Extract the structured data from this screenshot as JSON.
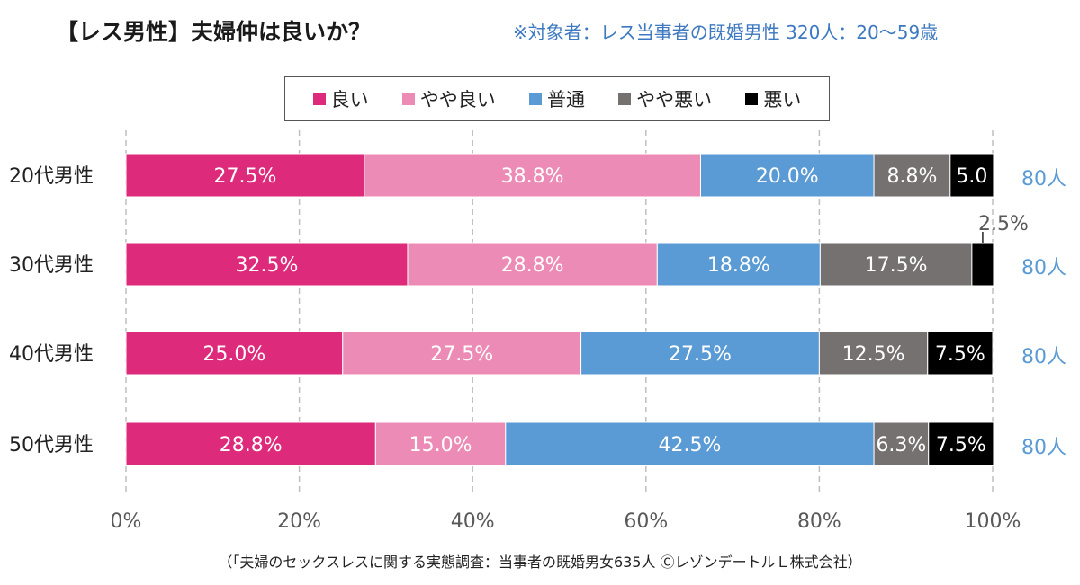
{
  "header": {
    "title": "【レス男性】夫婦仲は良いか？",
    "subtitle": "※対象者：レス当事者の既婚男性 320人：20〜59歳"
  },
  "footer": {
    "source": "（「夫婦のセックスレスに関する実態調査：当事者の既婚男女635人 ⒸレゾンデートルＬ株式会社）"
  },
  "chart_data": {
    "type": "bar",
    "orientation": "horizontal",
    "stacked": "percent",
    "categories": [
      "20代男性",
      "30代男性",
      "40代男性",
      "50代男性"
    ],
    "series": [
      {
        "name": "良い",
        "color": "#de2a7a",
        "values": [
          27.5,
          32.5,
          25.0,
          28.8
        ],
        "labels": [
          "27.5%",
          "32.5%",
          "25.0%",
          "28.8%"
        ]
      },
      {
        "name": "やや良い",
        "color": "#ec8cb6",
        "values": [
          38.8,
          28.8,
          27.5,
          15.0
        ],
        "labels": [
          "38.8%",
          "28.8%",
          "27.5%",
          "15.0%"
        ]
      },
      {
        "name": "普通",
        "color": "#5b9bd5",
        "values": [
          20.0,
          18.8,
          27.5,
          42.5
        ],
        "labels": [
          "20.0%",
          "18.8%",
          "27.5%",
          "42.5%"
        ]
      },
      {
        "name": "やや悪い",
        "color": "#767171",
        "values": [
          8.8,
          17.5,
          12.5,
          6.3
        ],
        "labels": [
          "8.8%",
          "17.5%",
          "12.5%",
          "6.3%"
        ]
      },
      {
        "name": "悪い",
        "color": "#000000",
        "values": [
          5.0,
          2.5,
          7.5,
          7.5
        ],
        "labels": [
          "5.0",
          "",
          "7.5%",
          "7.5%"
        ]
      }
    ],
    "callouts": [
      {
        "category_index": 1,
        "series_index": 4,
        "text": "2.5%"
      }
    ],
    "counts": [
      "80人",
      "80人",
      "80人",
      "80人"
    ],
    "x_ticks": [
      "0%",
      "20%",
      "40%",
      "60%",
      "80%",
      "100%"
    ],
    "xlim": [
      0,
      100
    ],
    "grid": "vertical-dashed",
    "legend_position": "top",
    "count_color": "#5b9bd5"
  }
}
